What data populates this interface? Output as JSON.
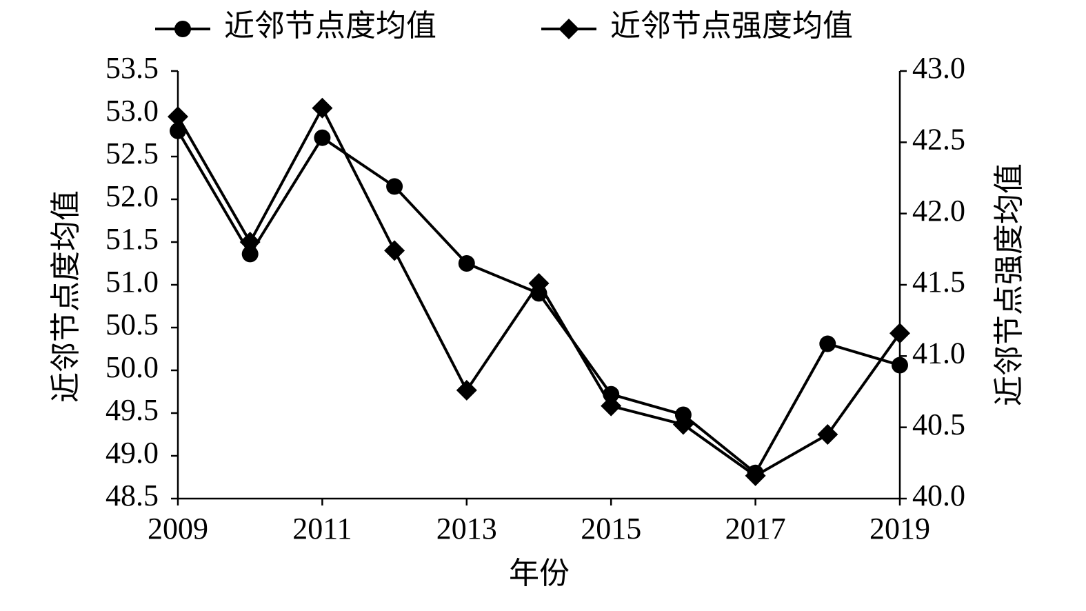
{
  "chart_data": {
    "type": "line",
    "x_label": "年份",
    "y_label": "近邻节点度均值",
    "y2_label": "近邻节点强度均值",
    "x": [
      2009,
      2010,
      2011,
      2012,
      2013,
      2014,
      2015,
      2016,
      2017,
      2018,
      2019
    ],
    "xlim": [
      2009,
      2019
    ],
    "xticks": [
      2009,
      2011,
      2013,
      2015,
      2017,
      2019
    ],
    "ylim": [
      48.5,
      53.5
    ],
    "yticks": [
      48.5,
      {
        "value": 49,
        "label": "49.0"
      },
      49.5,
      {
        "value": 50,
        "label": "50.0"
      },
      50.5,
      {
        "value": 51,
        "label": "51.0"
      },
      51.5,
      {
        "value": 52,
        "label": "52.0"
      },
      52.5,
      {
        "value": 53,
        "label": "53.0"
      },
      53.5
    ],
    "y2lim": [
      40,
      43
    ],
    "y2ticks": [
      {
        "value": 40,
        "label": "40.0"
      },
      40.5,
      {
        "value": 41,
        "label": "41.0"
      },
      41.5,
      {
        "value": 42,
        "label": "42.0"
      },
      42.5,
      {
        "value": 43,
        "label": "43.0"
      }
    ],
    "series": [
      {
        "name": "近邻节点度均值",
        "color": "#000000",
        "marker": "circle",
        "values": [
          52.8,
          51.36,
          52.72,
          52.15,
          51.25,
          50.9,
          49.72,
          49.48,
          48.8,
          50.31,
          50.06
        ]
      },
      {
        "name": "近邻节点强度均值",
        "color": "#000000",
        "marker": "diamond",
        "axis": "y2",
        "values": [
          42.68,
          41.8,
          42.74,
          41.74,
          40.76,
          41.51,
          40.65,
          40.52,
          40.16,
          40.45,
          41.16
        ]
      }
    ]
  }
}
